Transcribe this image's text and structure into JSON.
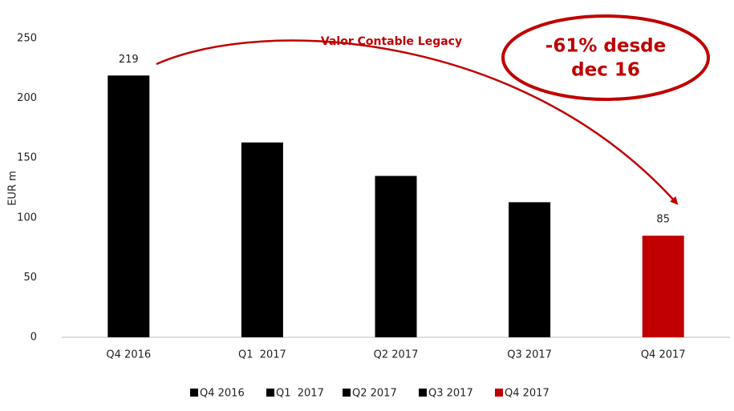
{
  "chart_data": {
    "type": "bar",
    "annotation": "Valor Contable Legacy",
    "callout": [
      "-61% desde",
      "dec 16"
    ],
    "ylabel": "EUR m",
    "categories": [
      "Q4 2016",
      "Q1  2017",
      "Q2 2017",
      "Q3 2017",
      "Q4 2017"
    ],
    "values": [
      219,
      163,
      135,
      113,
      85
    ],
    "value_labels": [
      "219",
      null,
      null,
      null,
      "85"
    ],
    "colors": [
      "#000000",
      "#000000",
      "#000000",
      "#000000",
      "#c00000"
    ],
    "ylim": [
      0,
      250
    ],
    "yticks": [
      0,
      50,
      100,
      150,
      200,
      250
    ],
    "legend": "bottom"
  }
}
